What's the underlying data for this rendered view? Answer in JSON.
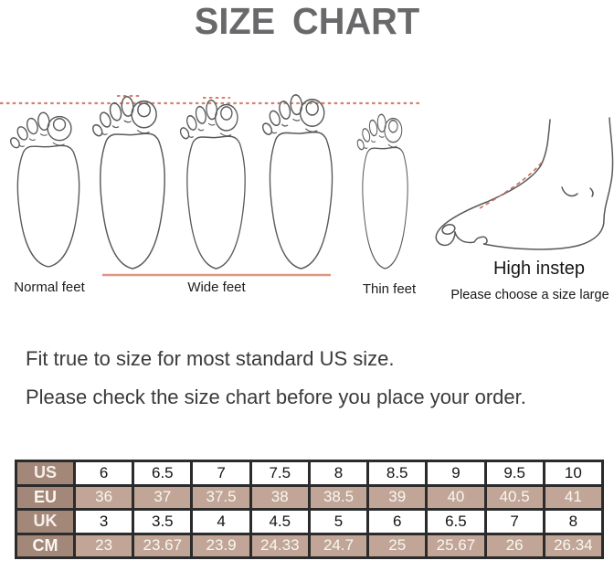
{
  "title": "SIZE CHART",
  "feet_guide": {
    "normal_label": "Normal feet",
    "wide_label": "Wide feet",
    "thin_label": "Thin feet",
    "instep_title": "High instep",
    "instep_note": "Please choose a size large"
  },
  "notes": {
    "line1": "Fit true to size for most standard US size.",
    "line2": "Please check the size chart before you place your order."
  },
  "chart_data": {
    "type": "table",
    "title": "Shoe size conversion chart",
    "row_headers": [
      "US",
      "EU",
      "UK",
      "CM"
    ],
    "rows": [
      {
        "label": "US",
        "shaded": false,
        "values": [
          "6",
          "6.5",
          "7",
          "7.5",
          "8",
          "8.5",
          "9",
          "9.5",
          "10"
        ]
      },
      {
        "label": "EU",
        "shaded": true,
        "values": [
          "36",
          "37",
          "37.5",
          "38",
          "38.5",
          "39",
          "40",
          "40.5",
          "41"
        ]
      },
      {
        "label": "UK",
        "shaded": false,
        "values": [
          "3",
          "3.5",
          "4",
          "4.5",
          "5",
          "6",
          "6.5",
          "7",
          "8"
        ]
      },
      {
        "label": "CM",
        "shaded": true,
        "values": [
          "23",
          "23.67",
          "23.9",
          "24.33",
          "24.7",
          "25",
          "25.67",
          "26",
          "26.34"
        ]
      }
    ]
  },
  "colors": {
    "accent_dash": "#d4826f",
    "wide_underline": "#dc9883",
    "table_border": "#2b2b2b",
    "table_header_bg": "#a3887a",
    "table_shaded_bg": "#c1a697",
    "title_color": "#69696b"
  }
}
